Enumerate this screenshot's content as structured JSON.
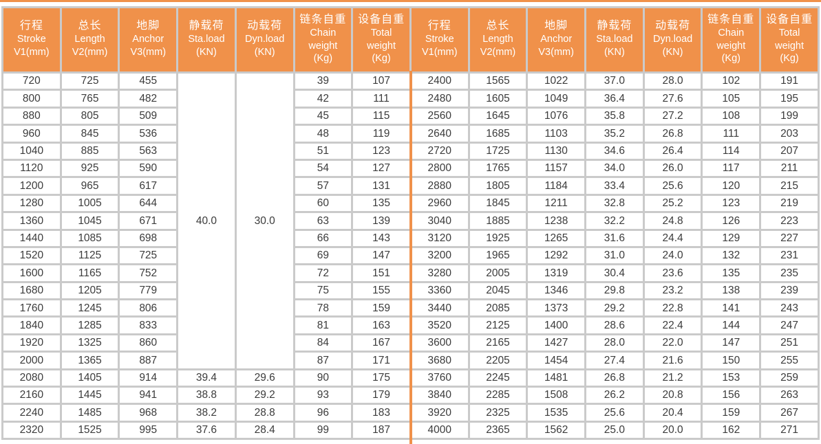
{
  "colors": {
    "accent": "#F0914A",
    "grid": "#CACACA",
    "header_text": "#FFFFFF",
    "cell_text": "#3B3B3B",
    "cell_bg": "#FFFFFF"
  },
  "table": {
    "columns": [
      {
        "key": "stroke",
        "zh": "行程",
        "lines": [
          "Stroke",
          "V1(mm)"
        ]
      },
      {
        "key": "length",
        "zh": "总长",
        "lines": [
          "Length",
          "V2(mm)"
        ]
      },
      {
        "key": "anchor",
        "zh": "地脚",
        "lines": [
          "Anchor",
          "V3(mm)"
        ]
      },
      {
        "key": "static-load",
        "zh": "静载荷",
        "lines": [
          "Sta.load",
          "(KN)"
        ]
      },
      {
        "key": "dynamic-load",
        "zh": "动载荷",
        "lines": [
          "Dyn.load",
          "(KN)"
        ]
      },
      {
        "key": "chain-weight",
        "zh": "链条自重",
        "lines": [
          "Chain",
          "weight",
          "(Kg)"
        ]
      },
      {
        "key": "total-weight",
        "zh": "设备自重",
        "lines": [
          "Total",
          "weight",
          "(Kg)"
        ]
      }
    ],
    "left_merged": {
      "sta": "40.0",
      "dyn": "30.0",
      "span": 17
    },
    "left_rows": [
      [
        "720",
        "725",
        "455",
        null,
        null,
        "39",
        "107"
      ],
      [
        "800",
        "765",
        "482",
        null,
        null,
        "42",
        "111"
      ],
      [
        "880",
        "805",
        "509",
        null,
        null,
        "45",
        "115"
      ],
      [
        "960",
        "845",
        "536",
        null,
        null,
        "48",
        "119"
      ],
      [
        "1040",
        "885",
        "563",
        null,
        null,
        "51",
        "123"
      ],
      [
        "1120",
        "925",
        "590",
        null,
        null,
        "54",
        "127"
      ],
      [
        "1200",
        "965",
        "617",
        null,
        null,
        "57",
        "131"
      ],
      [
        "1280",
        "1005",
        "644",
        null,
        null,
        "60",
        "135"
      ],
      [
        "1360",
        "1045",
        "671",
        null,
        null,
        "63",
        "139"
      ],
      [
        "1440",
        "1085",
        "698",
        null,
        null,
        "66",
        "143"
      ],
      [
        "1520",
        "1125",
        "725",
        null,
        null,
        "69",
        "147"
      ],
      [
        "1600",
        "1165",
        "752",
        null,
        null,
        "72",
        "151"
      ],
      [
        "1680",
        "1205",
        "779",
        null,
        null,
        "75",
        "155"
      ],
      [
        "1760",
        "1245",
        "806",
        null,
        null,
        "78",
        "159"
      ],
      [
        "1840",
        "1285",
        "833",
        null,
        null,
        "81",
        "163"
      ],
      [
        "1920",
        "1325",
        "860",
        null,
        null,
        "84",
        "167"
      ],
      [
        "2000",
        "1365",
        "887",
        null,
        null,
        "87",
        "171"
      ],
      [
        "2080",
        "1405",
        "914",
        "39.4",
        "29.6",
        "90",
        "175"
      ],
      [
        "2160",
        "1445",
        "941",
        "38.8",
        "29.2",
        "93",
        "179"
      ],
      [
        "2240",
        "1485",
        "968",
        "38.2",
        "28.8",
        "96",
        "183"
      ],
      [
        "2320",
        "1525",
        "995",
        "37.6",
        "28.4",
        "99",
        "187"
      ]
    ],
    "right_rows": [
      [
        "2400",
        "1565",
        "1022",
        "37.0",
        "28.0",
        "102",
        "191"
      ],
      [
        "2480",
        "1605",
        "1049",
        "36.4",
        "27.6",
        "105",
        "195"
      ],
      [
        "2560",
        "1645",
        "1076",
        "35.8",
        "27.2",
        "108",
        "199"
      ],
      [
        "2640",
        "1685",
        "1103",
        "35.2",
        "26.8",
        "111",
        "203"
      ],
      [
        "2720",
        "1725",
        "1130",
        "34.6",
        "26.4",
        "114",
        "207"
      ],
      [
        "2800",
        "1765",
        "1157",
        "34.0",
        "26.0",
        "117",
        "211"
      ],
      [
        "2880",
        "1805",
        "1184",
        "33.4",
        "25.6",
        "120",
        "215"
      ],
      [
        "2960",
        "1845",
        "1211",
        "32.8",
        "25.2",
        "123",
        "219"
      ],
      [
        "3040",
        "1885",
        "1238",
        "32.2",
        "24.8",
        "126",
        "223"
      ],
      [
        "3120",
        "1925",
        "1265",
        "31.6",
        "24.4",
        "129",
        "227"
      ],
      [
        "3200",
        "1965",
        "1292",
        "31.0",
        "24.0",
        "132",
        "231"
      ],
      [
        "3280",
        "2005",
        "1319",
        "30.4",
        "23.6",
        "135",
        "235"
      ],
      [
        "3360",
        "2045",
        "1346",
        "29.8",
        "23.2",
        "138",
        "239"
      ],
      [
        "3440",
        "2085",
        "1373",
        "29.2",
        "22.8",
        "141",
        "243"
      ],
      [
        "3520",
        "2125",
        "1400",
        "28.6",
        "22.4",
        "144",
        "247"
      ],
      [
        "3600",
        "2165",
        "1427",
        "28.0",
        "22.0",
        "147",
        "251"
      ],
      [
        "3680",
        "2205",
        "1454",
        "27.4",
        "21.6",
        "150",
        "255"
      ],
      [
        "3760",
        "2245",
        "1481",
        "26.8",
        "21.2",
        "153",
        "259"
      ],
      [
        "3840",
        "2285",
        "1508",
        "26.2",
        "20.8",
        "156",
        "263"
      ],
      [
        "3920",
        "2325",
        "1535",
        "25.6",
        "20.4",
        "159",
        "267"
      ],
      [
        "4000",
        "2365",
        "1562",
        "25.0",
        "20.0",
        "162",
        "271"
      ]
    ]
  }
}
